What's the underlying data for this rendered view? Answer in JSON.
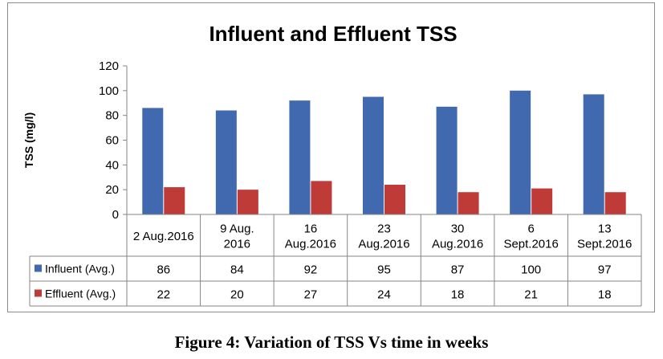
{
  "chart_data": {
    "type": "bar",
    "title": "Influent and Effluent TSS",
    "ylabel": "TSS (mg/l)",
    "xlabel": "",
    "ylim": [
      0,
      120
    ],
    "yticks": [
      "0",
      "20",
      "40",
      "60",
      "80",
      "100",
      "120"
    ],
    "grid": false,
    "legend_placement": "data-table",
    "categories": [
      [
        "2 Aug.2016"
      ],
      [
        "9 Aug.",
        "2016"
      ],
      [
        "16",
        "Aug.2016"
      ],
      [
        "23",
        "Aug.2016"
      ],
      [
        "30",
        "Aug.2016"
      ],
      [
        "6",
        "Sept.2016"
      ],
      [
        "13",
        "Sept.2016"
      ]
    ],
    "series": [
      {
        "name": "Influent (Avg.)",
        "color": "#4169B0",
        "values": [
          86,
          84,
          92,
          95,
          87,
          100,
          97
        ]
      },
      {
        "name": "Effluent (Avg.)",
        "color": "#BF3B38",
        "values": [
          22,
          20,
          27,
          24,
          18,
          21,
          18
        ]
      }
    ]
  },
  "caption": "Figure 4: Variation  of TSS Vs time in weeks"
}
